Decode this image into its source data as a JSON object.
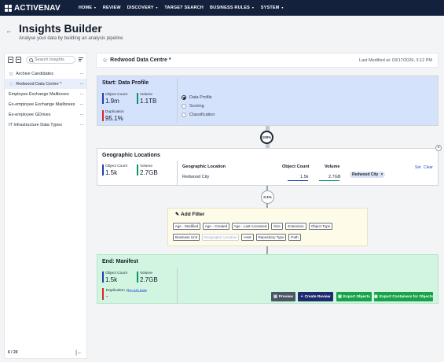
{
  "nav": {
    "logo_text": "ACTIVENAV",
    "items": [
      "HOME",
      "REVIEW",
      "DISCOVERY",
      "TARGET SEARCH",
      "BUSINESS RULES",
      "SYSTEM"
    ],
    "has_caret": [
      true,
      false,
      true,
      false,
      true,
      true
    ],
    "background": "#14213d"
  },
  "page": {
    "title": "Insights Builder",
    "subtitle": "Analyse your data by building an analysis pipeline"
  },
  "sidebar": {
    "search_placeholder": "Search Insights",
    "items": [
      {
        "label": "Archive Candidates",
        "star": true,
        "active": false
      },
      {
        "label": "Redwood Data Centre *",
        "star": true,
        "active": true
      },
      {
        "label": "Employee Exchange Mailboxes",
        "star": false,
        "active": false
      },
      {
        "label": "Ex-employee Exchange Mailboxes",
        "star": false,
        "active": false
      },
      {
        "label": "Ex-employee GDrives",
        "star": false,
        "active": false
      },
      {
        "label": "IT Infrastructure Data Types",
        "star": false,
        "active": false
      }
    ],
    "pager": "6 / 20"
  },
  "header": {
    "title": "Redwood Data Centre *",
    "modified": "Last Modified at: 03/17/2026, 3:12 PM"
  },
  "start": {
    "title": "Start: Data Profile",
    "object_count_label": "Object Count",
    "object_count": "1.9m",
    "volume_label": "Volume",
    "volume": "1.1TB",
    "duplication_label": "Duplication",
    "duplication": "95.1%",
    "options": [
      "Data Profile",
      "Scoring",
      "Classification"
    ],
    "selected": "Data Profile",
    "connector_pct": "100%"
  },
  "geo": {
    "title": "Geographic Locations",
    "object_count_label": "Object Count",
    "object_count": "1.5k",
    "volume_label": "Volume",
    "volume": "2.7GB",
    "table_headers": [
      "Geographic Location",
      "Object Count",
      "Volume"
    ],
    "row": {
      "location": "Redwood City",
      "count": "1.5k",
      "volume": "2.7GB"
    },
    "chip": "Redwood City",
    "set_label": "Set",
    "clear_label": "Clear",
    "connector_pct": "0.1%"
  },
  "filter": {
    "title": "Add Filter",
    "row1": [
      "Age - Modified",
      "Age - Created",
      "Age - Last Accessed",
      "Size",
      "Extension",
      "Object Type"
    ],
    "row2": [
      "Business Unit",
      "Geographic Location",
      "Host",
      "Repository Type",
      "Path"
    ]
  },
  "end": {
    "title": "End: Manifest",
    "object_count_label": "Object Count",
    "object_count": "1.5k",
    "volume_label": "Volume",
    "volume": "2.7GB",
    "duplication_label": "Duplication",
    "duplication": "-",
    "recalculate": "Recalculate",
    "actions": [
      "Preview",
      "Create Review",
      "Export Objects",
      "Export Containers for Objects"
    ]
  },
  "colors": {
    "accent_blue": "#1d4ed8",
    "start_bg": "#d5e2fb",
    "end_bg": "#d1f5e1",
    "filter_bg": "#fefce8",
    "create_review": "#1e2a6e",
    "export_green": "#16a34a",
    "preview_gray": "#4b5563"
  }
}
